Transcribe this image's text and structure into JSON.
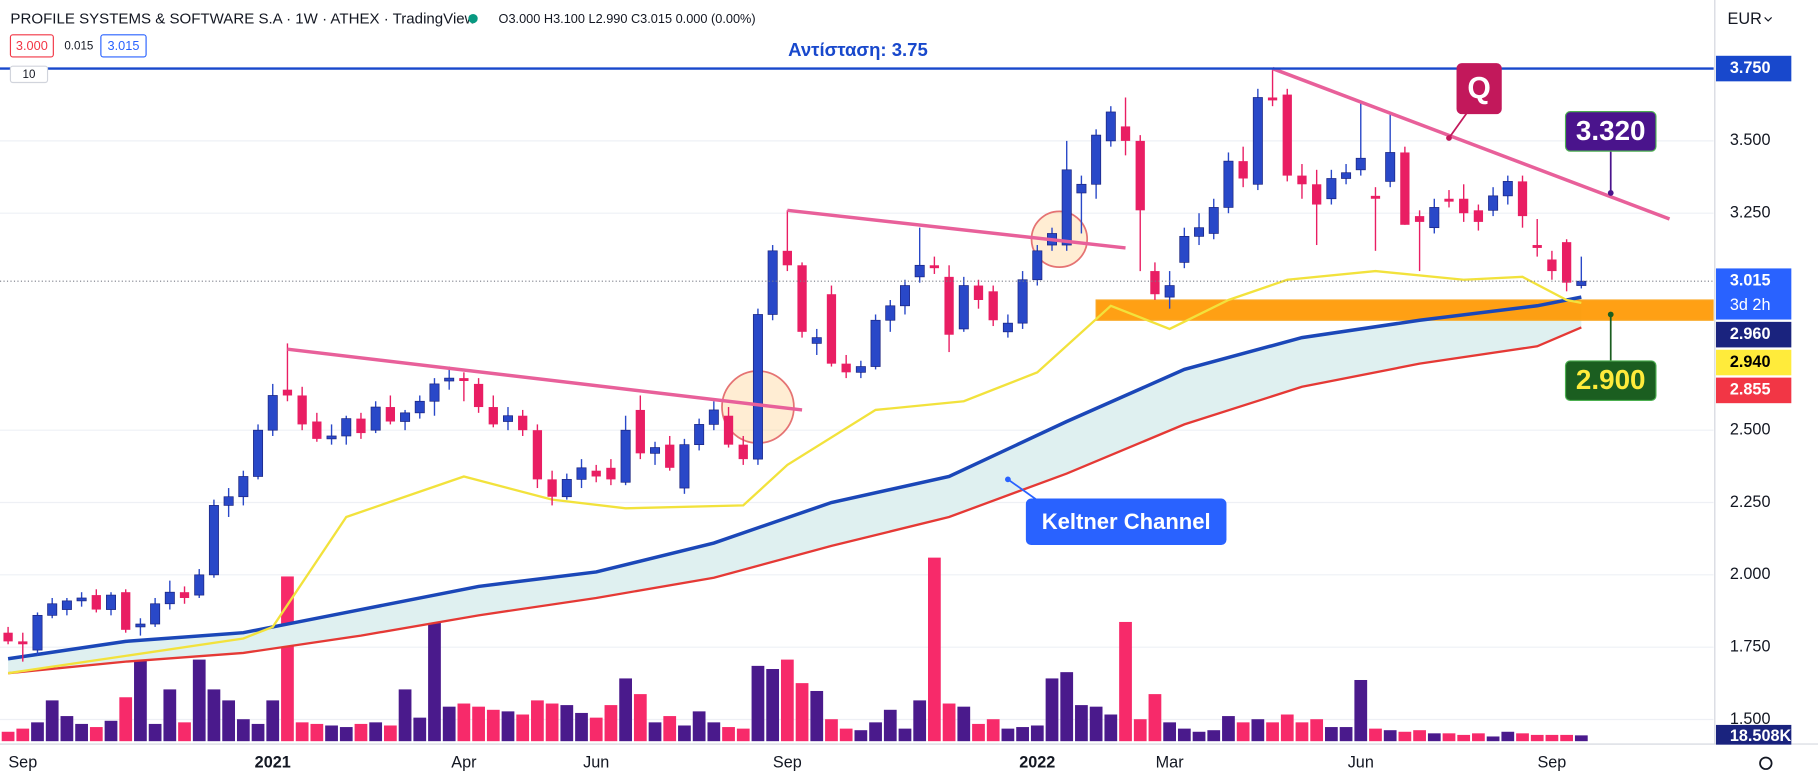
{
  "header": {
    "title": "PROFILE SYSTEMS & SOFTWARE S.A · 1W · ATHEX · TradingView",
    "ohlc": "O3.000 H3.100 L2.990 C3.015 0.000 (0.00%)",
    "bid": "3.000",
    "spread": "0.015",
    "ask": "3.015",
    "indicator_count": "10",
    "currency": "EUR"
  },
  "chart_data": {
    "type": "candlestick",
    "categories": [
      null,
      "Sep",
      null,
      null,
      null,
      null,
      null,
      null,
      null,
      null,
      null,
      null,
      null,
      null,
      null,
      null,
      null,
      null,
      "2021",
      null,
      null,
      null,
      null,
      null,
      null,
      null,
      null,
      null,
      null,
      null,
      null,
      "Apr",
      null,
      null,
      null,
      null,
      null,
      null,
      null,
      null,
      "Jun",
      null,
      null,
      null,
      null,
      null,
      null,
      null,
      null,
      null,
      null,
      null,
      null,
      "Sep",
      null,
      null,
      null,
      null,
      null,
      null,
      null,
      null,
      null,
      null,
      null,
      null,
      null,
      null,
      null,
      null,
      "2022",
      null,
      null,
      null,
      null,
      null,
      null,
      null,
      null,
      "Mar",
      null,
      null,
      null,
      null,
      null,
      null,
      null,
      null,
      null,
      null,
      null,
      null,
      "Jun",
      null,
      null,
      null,
      null,
      null,
      null,
      null,
      null,
      null,
      null,
      null,
      null,
      "Sep",
      null,
      null
    ],
    "ohlc": [
      [
        1.8,
        1.82,
        1.76,
        1.77
      ],
      [
        1.77,
        1.8,
        1.7,
        1.76
      ],
      [
        1.74,
        1.87,
        1.72,
        1.86
      ],
      [
        1.86,
        1.92,
        1.85,
        1.9
      ],
      [
        1.88,
        1.92,
        1.86,
        1.91
      ],
      [
        1.91,
        1.94,
        1.89,
        1.92
      ],
      [
        1.93,
        1.95,
        1.87,
        1.88
      ],
      [
        1.88,
        1.94,
        1.86,
        1.93
      ],
      [
        1.94,
        1.95,
        1.8,
        1.81
      ],
      [
        1.82,
        1.85,
        1.79,
        1.83
      ],
      [
        1.83,
        1.92,
        1.82,
        1.9
      ],
      [
        1.9,
        1.98,
        1.88,
        1.94
      ],
      [
        1.94,
        1.96,
        1.9,
        1.92
      ],
      [
        1.93,
        2.02,
        1.92,
        2.0
      ],
      [
        2.0,
        2.26,
        1.99,
        2.24
      ],
      [
        2.24,
        2.3,
        2.2,
        2.27
      ],
      [
        2.27,
        2.36,
        2.24,
        2.34
      ],
      [
        2.34,
        2.52,
        2.33,
        2.5
      ],
      [
        2.5,
        2.66,
        2.48,
        2.62
      ],
      [
        2.64,
        2.8,
        2.6,
        2.62
      ],
      [
        2.62,
        2.65,
        2.5,
        2.52
      ],
      [
        2.53,
        2.56,
        2.46,
        2.47
      ],
      [
        2.47,
        2.52,
        2.45,
        2.48
      ],
      [
        2.48,
        2.55,
        2.45,
        2.54
      ],
      [
        2.54,
        2.56,
        2.47,
        2.49
      ],
      [
        2.5,
        2.6,
        2.49,
        2.58
      ],
      [
        2.58,
        2.62,
        2.52,
        2.53
      ],
      [
        2.53,
        2.57,
        2.5,
        2.56
      ],
      [
        2.56,
        2.62,
        2.54,
        2.6
      ],
      [
        2.6,
        2.68,
        2.55,
        2.66
      ],
      [
        2.67,
        2.72,
        2.64,
        2.68
      ],
      [
        2.68,
        2.7,
        2.6,
        2.67
      ],
      [
        2.66,
        2.68,
        2.56,
        2.58
      ],
      [
        2.58,
        2.62,
        2.51,
        2.52
      ],
      [
        2.53,
        2.58,
        2.5,
        2.55
      ],
      [
        2.55,
        2.57,
        2.48,
        2.5
      ],
      [
        2.5,
        2.52,
        2.3,
        2.33
      ],
      [
        2.33,
        2.36,
        2.24,
        2.27
      ],
      [
        2.27,
        2.35,
        2.26,
        2.33
      ],
      [
        2.33,
        2.4,
        2.3,
        2.37
      ],
      [
        2.36,
        2.38,
        2.32,
        2.34
      ],
      [
        2.37,
        2.4,
        2.31,
        2.33
      ],
      [
        2.32,
        2.55,
        2.31,
        2.5
      ],
      [
        2.57,
        2.62,
        2.4,
        2.42
      ],
      [
        2.42,
        2.46,
        2.38,
        2.44
      ],
      [
        2.45,
        2.48,
        2.36,
        2.37
      ],
      [
        2.3,
        2.47,
        2.28,
        2.45
      ],
      [
        2.45,
        2.54,
        2.43,
        2.52
      ],
      [
        2.52,
        2.6,
        2.5,
        2.57
      ],
      [
        2.55,
        2.58,
        2.44,
        2.45
      ],
      [
        2.45,
        2.48,
        2.38,
        2.4
      ],
      [
        2.4,
        2.92,
        2.38,
        2.9
      ],
      [
        2.9,
        3.14,
        2.88,
        3.12
      ],
      [
        3.12,
        3.26,
        3.05,
        3.07
      ],
      [
        3.07,
        3.08,
        2.82,
        2.84
      ],
      [
        2.8,
        2.85,
        2.76,
        2.82
      ],
      [
        2.97,
        3.0,
        2.72,
        2.73
      ],
      [
        2.73,
        2.76,
        2.68,
        2.7
      ],
      [
        2.7,
        2.74,
        2.68,
        2.72
      ],
      [
        2.72,
        2.9,
        2.71,
        2.88
      ],
      [
        2.88,
        2.95,
        2.84,
        2.93
      ],
      [
        2.93,
        3.02,
        2.9,
        3.0
      ],
      [
        3.03,
        3.2,
        3.01,
        3.07
      ],
      [
        3.07,
        3.1,
        3.04,
        3.06
      ],
      [
        3.03,
        3.07,
        2.77,
        2.83
      ],
      [
        2.85,
        3.03,
        2.84,
        3.0
      ],
      [
        3.0,
        3.02,
        2.92,
        2.95
      ],
      [
        2.98,
        3.0,
        2.86,
        2.88
      ],
      [
        2.84,
        2.9,
        2.82,
        2.87
      ],
      [
        2.87,
        3.05,
        2.85,
        3.02
      ],
      [
        3.02,
        3.14,
        3.0,
        3.12
      ],
      [
        3.14,
        3.2,
        3.12,
        3.18
      ],
      [
        3.14,
        3.5,
        3.12,
        3.4
      ],
      [
        3.32,
        3.38,
        3.18,
        3.35
      ],
      [
        3.35,
        3.54,
        3.3,
        3.52
      ],
      [
        3.5,
        3.62,
        3.48,
        3.6
      ],
      [
        3.55,
        3.65,
        3.45,
        3.5
      ],
      [
        3.5,
        3.52,
        3.05,
        3.26
      ],
      [
        3.05,
        3.08,
        2.95,
        2.97
      ],
      [
        2.96,
        3.05,
        2.92,
        3.0
      ],
      [
        3.08,
        3.2,
        3.06,
        3.17
      ],
      [
        3.17,
        3.25,
        3.14,
        3.2
      ],
      [
        3.18,
        3.3,
        3.16,
        3.27
      ],
      [
        3.27,
        3.46,
        3.25,
        3.43
      ],
      [
        3.43,
        3.48,
        3.34,
        3.37
      ],
      [
        3.35,
        3.68,
        3.33,
        3.65
      ],
      [
        3.65,
        3.75,
        3.62,
        3.64
      ],
      [
        3.66,
        3.68,
        3.36,
        3.38
      ],
      [
        3.38,
        3.42,
        3.3,
        3.35
      ],
      [
        3.35,
        3.4,
        3.14,
        3.28
      ],
      [
        3.3,
        3.4,
        3.28,
        3.37
      ],
      [
        3.37,
        3.42,
        3.35,
        3.39
      ],
      [
        3.4,
        3.63,
        3.38,
        3.44
      ],
      [
        3.31,
        3.34,
        3.12,
        3.3
      ],
      [
        3.36,
        3.6,
        3.34,
        3.46
      ],
      [
        3.46,
        3.48,
        3.21,
        3.21
      ],
      [
        3.24,
        3.26,
        3.05,
        3.22
      ],
      [
        3.2,
        3.3,
        3.18,
        3.27
      ],
      [
        3.3,
        3.33,
        3.27,
        3.29
      ],
      [
        3.3,
        3.35,
        3.22,
        3.25
      ],
      [
        3.26,
        3.28,
        3.19,
        3.22
      ],
      [
        3.26,
        3.34,
        3.24,
        3.31
      ],
      [
        3.31,
        3.38,
        3.28,
        3.36
      ],
      [
        3.36,
        3.38,
        3.2,
        3.24
      ],
      [
        3.14,
        3.23,
        3.1,
        3.13
      ],
      [
        3.09,
        3.12,
        3.02,
        3.05
      ],
      [
        3.15,
        3.16,
        2.98,
        3.01
      ],
      [
        3.0,
        3.1,
        2.99,
        3.015
      ]
    ],
    "up_color": "#2948c8",
    "down_color": "#e91e63",
    "volume": [
      30,
      40,
      60,
      130,
      80,
      55,
      45,
      65,
      140,
      275,
      55,
      165,
      60,
      260,
      165,
      130,
      70,
      55,
      130,
      525,
      60,
      55,
      50,
      45,
      55,
      60,
      50,
      165,
      75,
      405,
      110,
      120,
      110,
      100,
      95,
      85,
      130,
      120,
      115,
      90,
      75,
      115,
      200,
      150,
      60,
      80,
      50,
      95,
      60,
      45,
      40,
      240,
      230,
      260,
      185,
      160,
      70,
      40,
      35,
      60,
      100,
      40,
      130,
      585,
      120,
      110,
      55,
      70,
      40,
      45,
      50,
      200,
      220,
      115,
      110,
      85,
      380,
      70,
      150,
      60,
      40,
      30,
      35,
      80,
      60,
      70,
      60,
      85,
      60,
      70,
      45,
      45,
      195,
      40,
      35,
      30,
      35,
      25,
      25,
      20,
      25,
      15,
      30,
      25,
      20,
      20,
      20,
      18.508
    ],
    "volume_label": "18.508K",
    "volume_label_color": "#1a237e",
    "volume_up_color": "#4a1a8c",
    "volume_down_color": "#f72a6a",
    "xlim": [
      -0.55,
      116
    ],
    "ylim": [
      1.417,
      3.987
    ],
    "yticks": [
      {
        "value": 1.5,
        "label": "1.500"
      },
      {
        "value": 1.75,
        "label": "1.750"
      },
      {
        "value": 2,
        "label": "2.000"
      },
      {
        "value": 2.25,
        "label": "2.250"
      },
      {
        "value": 2.5,
        "label": "2.500"
      },
      {
        "value": 3.25,
        "label": "3.250"
      },
      {
        "value": 3.5,
        "label": "3.500"
      }
    ],
    "grid": true,
    "lines": [
      {
        "color": "#1b47b8",
        "x": [
          0,
          8,
          16,
          24,
          32,
          40,
          48,
          56,
          64,
          72,
          80,
          88,
          96,
          104,
          107
        ],
        "values": [
          1.71,
          1.77,
          1.8,
          1.88,
          1.96,
          2.01,
          2.11,
          2.25,
          2.34,
          2.53,
          2.71,
          2.82,
          2.88,
          2.93,
          2.96
        ],
        "label": "2.960",
        "label_color": "#1a237e",
        "label_text_color": "#ffffff"
      },
      {
        "color": "#e53935",
        "x": [
          0,
          8,
          16,
          24,
          32,
          40,
          48,
          56,
          64,
          72,
          80,
          88,
          96,
          104,
          107
        ],
        "values": [
          1.66,
          1.7,
          1.73,
          1.79,
          1.86,
          1.92,
          1.99,
          2.1,
          2.2,
          2.35,
          2.52,
          2.65,
          2.73,
          2.79,
          2.855
        ],
        "label": "2.855",
        "label_color": "#f23645",
        "label_text_color": "#ffffff"
      },
      {
        "color": "#f2e23c",
        "x": [
          0,
          8,
          16,
          18,
          23,
          31,
          37,
          42,
          50,
          53,
          59,
          65,
          70,
          75,
          79,
          83,
          87,
          93,
          99,
          103,
          106,
          107
        ],
        "values": [
          1.66,
          1.72,
          1.78,
          1.82,
          2.2,
          2.34,
          2.26,
          2.23,
          2.24,
          2.38,
          2.57,
          2.6,
          2.7,
          2.93,
          2.85,
          2.95,
          3.02,
          3.05,
          3.02,
          3.03,
          2.95,
          2.94
        ],
        "label": "2.940",
        "label_color": "#ffeb3b",
        "label_text_color": "#000000"
      }
    ],
    "channel_fill": "#dff0f0",
    "last_price": {
      "value": 3.015,
      "label": "3.015",
      "countdown": "3d 2h",
      "color": "#2962ff"
    },
    "resistance": {
      "label": "Αντίσταση: 3.75",
      "value": 3.75,
      "axis_label": "3.750",
      "color": "#1848cc"
    },
    "zone": {
      "x": 74,
      "values": [
        2.88,
        2.95
      ],
      "color": "#ff9800"
    },
    "trendlines": [
      {
        "x": [
          19,
          54
        ],
        "values": [
          2.78,
          2.57
        ],
        "color": "#e8609a"
      },
      {
        "x": [
          53,
          76
        ],
        "values": [
          3.26,
          3.13
        ],
        "color": "#e8609a"
      },
      {
        "x": [
          86,
          113
        ],
        "values": [
          3.75,
          3.23
        ],
        "color": "#e8609a"
      }
    ],
    "highlights": [
      {
        "x": 51,
        "value": 2.58
      },
      {
        "x": 71.5,
        "value": 3.16
      }
    ],
    "callouts": [
      {
        "label": "3.320",
        "x": 109,
        "value": 3.32,
        "color": "#4a148c",
        "text_color": "#ffffff"
      },
      {
        "label": "2.900",
        "x": 109,
        "value": 2.9,
        "color": "#1b5e20",
        "text_color": "#ffeb3b"
      },
      {
        "label": "Keltner Channel",
        "x": 68,
        "value": 2.33,
        "color": "#2962ff",
        "text_color": "#ffffff"
      },
      {
        "label": "Q",
        "x": 98,
        "value": 3.51,
        "color": "#c2185b",
        "text_color": "#ffffff"
      }
    ]
  }
}
